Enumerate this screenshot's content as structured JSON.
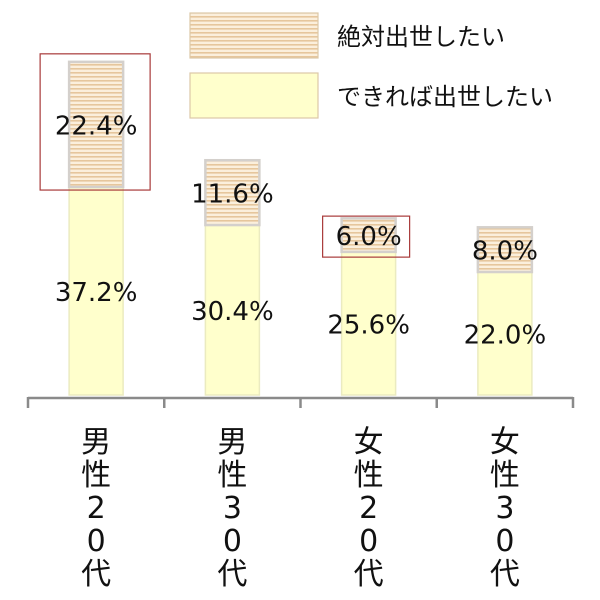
{
  "chart_data": {
    "type": "bar",
    "stacked": true,
    "categories": [
      "男性20代",
      "男性30代",
      "女性20代",
      "女性30代"
    ],
    "series": [
      {
        "name": "できれば出世したい",
        "values": [
          37.2,
          30.4,
          25.6,
          22.0
        ],
        "labels": [
          "37.2%",
          "30.4%",
          "25.6%",
          "22.0%"
        ],
        "color": "#ffffcc",
        "pattern": "solid"
      },
      {
        "name": "絶対出世したい",
        "values": [
          22.4,
          11.6,
          6.0,
          8.0
        ],
        "labels": [
          "22.4%",
          "11.6%",
          "6.0%",
          "8.0%"
        ],
        "color": "#f5dcb8",
        "pattern": "horizontal-stripes"
      }
    ],
    "highlighted_labels": [
      "22.4%",
      "6.0%"
    ],
    "highlight_color": "#a83a3a",
    "legend": {
      "placement": "top",
      "items": [
        "絶対出世したい",
        "できれば出世したい"
      ]
    },
    "title": "",
    "xlabel": "",
    "ylabel": "",
    "ylim": [
      0,
      60
    ],
    "grid": false
  }
}
